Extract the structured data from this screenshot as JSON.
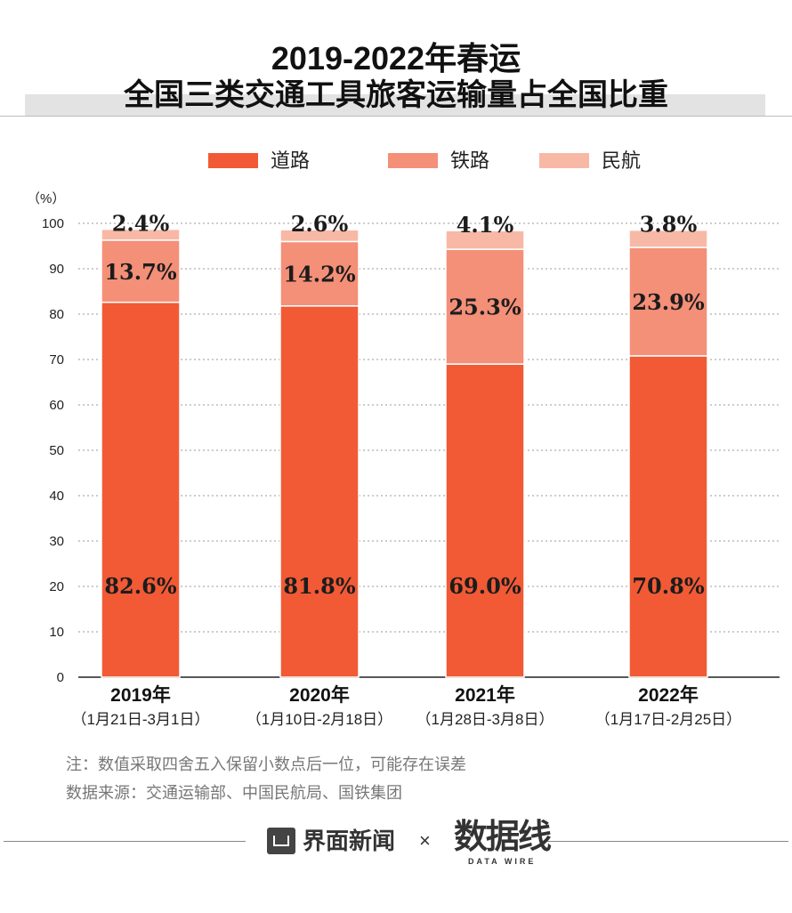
{
  "header": {
    "title_line1": "2019-2022年春运",
    "title_line2": "全国三类交通工具旅客运输量占全国比重"
  },
  "chart_data": {
    "type": "bar",
    "stacked": true,
    "unit_label": "（%）",
    "ylim": [
      0,
      100
    ],
    "yticks": [
      0,
      10,
      20,
      30,
      40,
      50,
      60,
      70,
      80,
      90,
      100
    ],
    "grid": true,
    "legend_position": "top",
    "categories": [
      "2019年",
      "2020年",
      "2021年",
      "2022年"
    ],
    "category_subtitles": [
      "（1月21日-3月1日）",
      "（1月10日-2月18日）",
      "（1月28日-3月8日）",
      "（1月17日-2月25日）"
    ],
    "series": [
      {
        "name": "道路",
        "values": [
          82.6,
          81.8,
          69.0,
          70.8
        ],
        "labels": [
          "82.6%",
          "81.8%",
          "69.0%",
          "70.8%"
        ],
        "color": "#f15a35"
      },
      {
        "name": "铁路",
        "values": [
          13.7,
          14.2,
          25.3,
          23.9
        ],
        "labels": [
          "13.7%",
          "14.2%",
          "25.3%",
          "23.9%"
        ],
        "color": "#f48f78"
      },
      {
        "name": "民航",
        "values": [
          2.4,
          2.6,
          4.1,
          3.8
        ],
        "labels": [
          "2.4%",
          "2.6%",
          "4.1%",
          "3.8%"
        ],
        "color": "#f8b8a6"
      }
    ]
  },
  "notes": {
    "line1": "注：数值采取四舍五入保留小数点后一位，可能存在误差",
    "line2": "数据来源：交通运输部、中国民航局、国铁集团"
  },
  "footer": {
    "brand": "界面新闻",
    "separator": "×",
    "logo_text": "数据线",
    "logo_subtext": "DATA WIRE",
    "icon": "jiemian-news-icon"
  }
}
